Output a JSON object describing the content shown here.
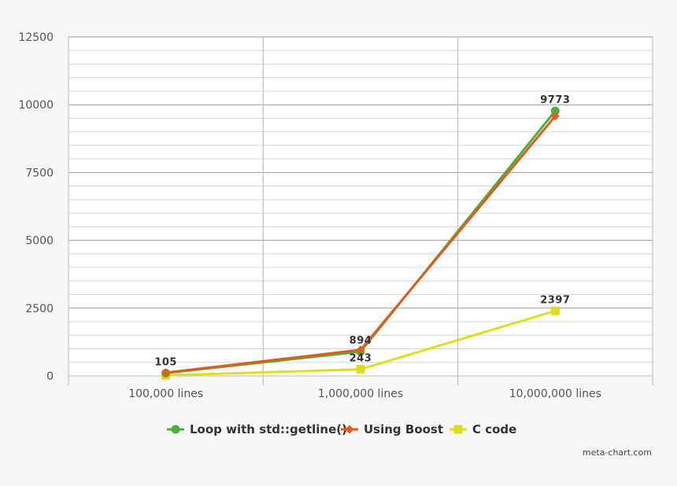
{
  "chart_data": {
    "type": "line",
    "categories": [
      "100,000 lines",
      "1,000,000 lines",
      "10,000,000 lines"
    ],
    "series": [
      {
        "name": "Loop with std::getline()",
        "color": "#4caf3c",
        "marker": "circle",
        "values": [
          105,
          894,
          9773
        ]
      },
      {
        "name": "Using Boost",
        "color": "#e35a1c",
        "marker": "diamond",
        "values": [
          120,
          960,
          9580
        ]
      },
      {
        "name": "C code",
        "color": "#dede1a",
        "marker": "square",
        "values": [
          20,
          243,
          2397
        ]
      }
    ],
    "data_labels": [
      {
        "category": "100,000 lines",
        "text": "105",
        "value": 105
      },
      {
        "category": "1,000,000 lines",
        "text": "894",
        "value": 894
      },
      {
        "category": "1,000,000 lines",
        "text": "243",
        "value": 243
      },
      {
        "category": "10,000,000 lines",
        "text": "9773",
        "value": 9773
      },
      {
        "category": "10,000,000 lines",
        "text": "2397",
        "value": 2397
      }
    ],
    "y_ticks": [
      "0",
      "2500",
      "5000",
      "7500",
      "10000",
      "12500"
    ],
    "ylim": [
      0,
      12500
    ],
    "grid": true,
    "legend": "bottom-center"
  },
  "credit": "meta-chart.com"
}
